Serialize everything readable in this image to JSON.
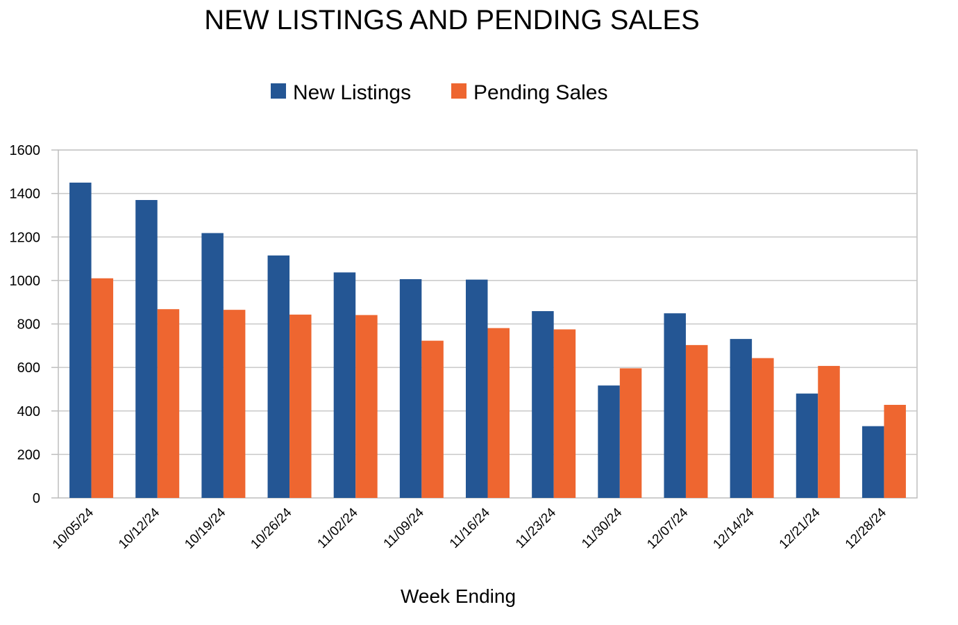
{
  "chart_data": {
    "type": "bar",
    "title": "NEW LISTINGS AND PENDING SALES",
    "xlabel": "Week Ending",
    "ylabel": "",
    "ylim": [
      0,
      1600
    ],
    "yticks": [
      0,
      200,
      400,
      600,
      800,
      1000,
      1200,
      1400,
      1600
    ],
    "grid": true,
    "legend_position": "top-center",
    "categories": [
      "10/05/24",
      "10/12/24",
      "10/19/24",
      "10/26/24",
      "11/02/24",
      "11/09/24",
      "11/16/24",
      "11/23/24",
      "11/30/24",
      "12/07/24",
      "12/14/24",
      "12/21/24",
      "12/28/24"
    ],
    "series": [
      {
        "name": "New Listings",
        "color": "#245694",
        "values": [
          1450,
          1370,
          1218,
          1115,
          1037,
          1006,
          1004,
          859,
          517,
          849,
          731,
          480,
          330
        ]
      },
      {
        "name": "Pending Sales",
        "color": "#EE6630",
        "values": [
          1010,
          868,
          865,
          843,
          841,
          723,
          781,
          775,
          596,
          703,
          643,
          607,
          428
        ]
      }
    ]
  }
}
